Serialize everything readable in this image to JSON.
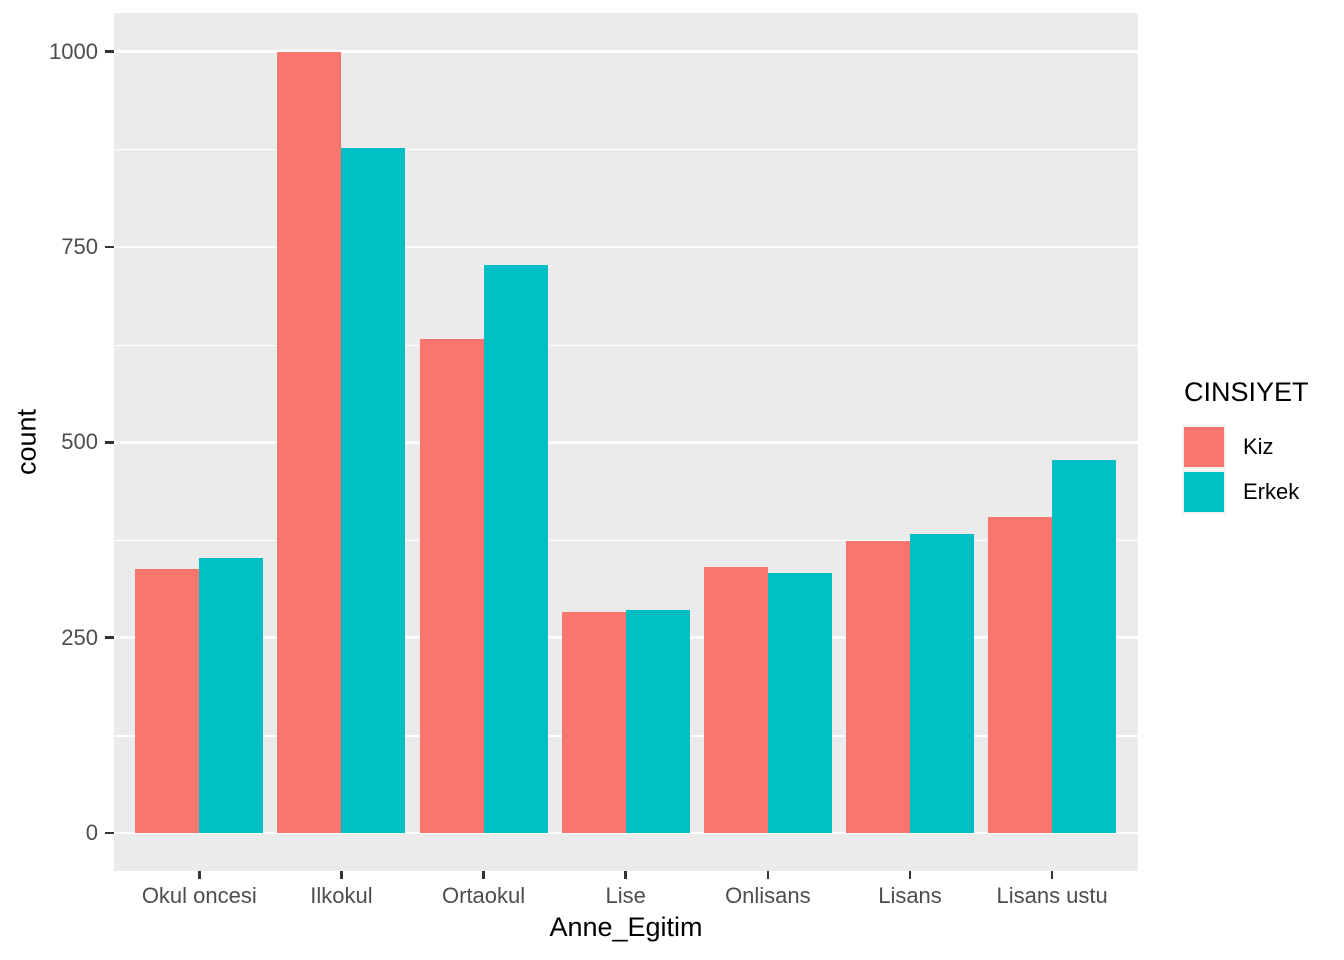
{
  "chart_data": {
    "type": "bar",
    "subtype": "grouped-dodge",
    "title": "",
    "xlabel": "Anne_Egitim",
    "ylabel": "count",
    "categories": [
      "Okul oncesi",
      "Ilkokul",
      "Ortaokul",
      "Lise",
      "Onlisans",
      "Lisans",
      "Lisans ustu"
    ],
    "series": [
      {
        "name": "Kiz",
        "color": "#F8766D",
        "values": [
          338,
          1000,
          632,
          283,
          340,
          374,
          405
        ]
      },
      {
        "name": "Erkek",
        "color": "#00BFC4",
        "values": [
          352,
          877,
          727,
          285,
          333,
          383,
          478
        ]
      }
    ],
    "yticks": [
      0,
      250,
      500,
      750,
      1000
    ],
    "ylim": [
      0,
      1000
    ],
    "grid": "major-and-minor",
    "legend": {
      "title": "CINSIYET",
      "position": "right"
    }
  },
  "colors": {
    "panel_background": "#EBEBEB",
    "gridline": "#FFFFFF",
    "axis_text": "#4D4D4D",
    "tick_mark": "#333333",
    "title_text": "#000000",
    "legend_key_background": "#F2F2F2",
    "figure_background": "#FFFFFF"
  }
}
